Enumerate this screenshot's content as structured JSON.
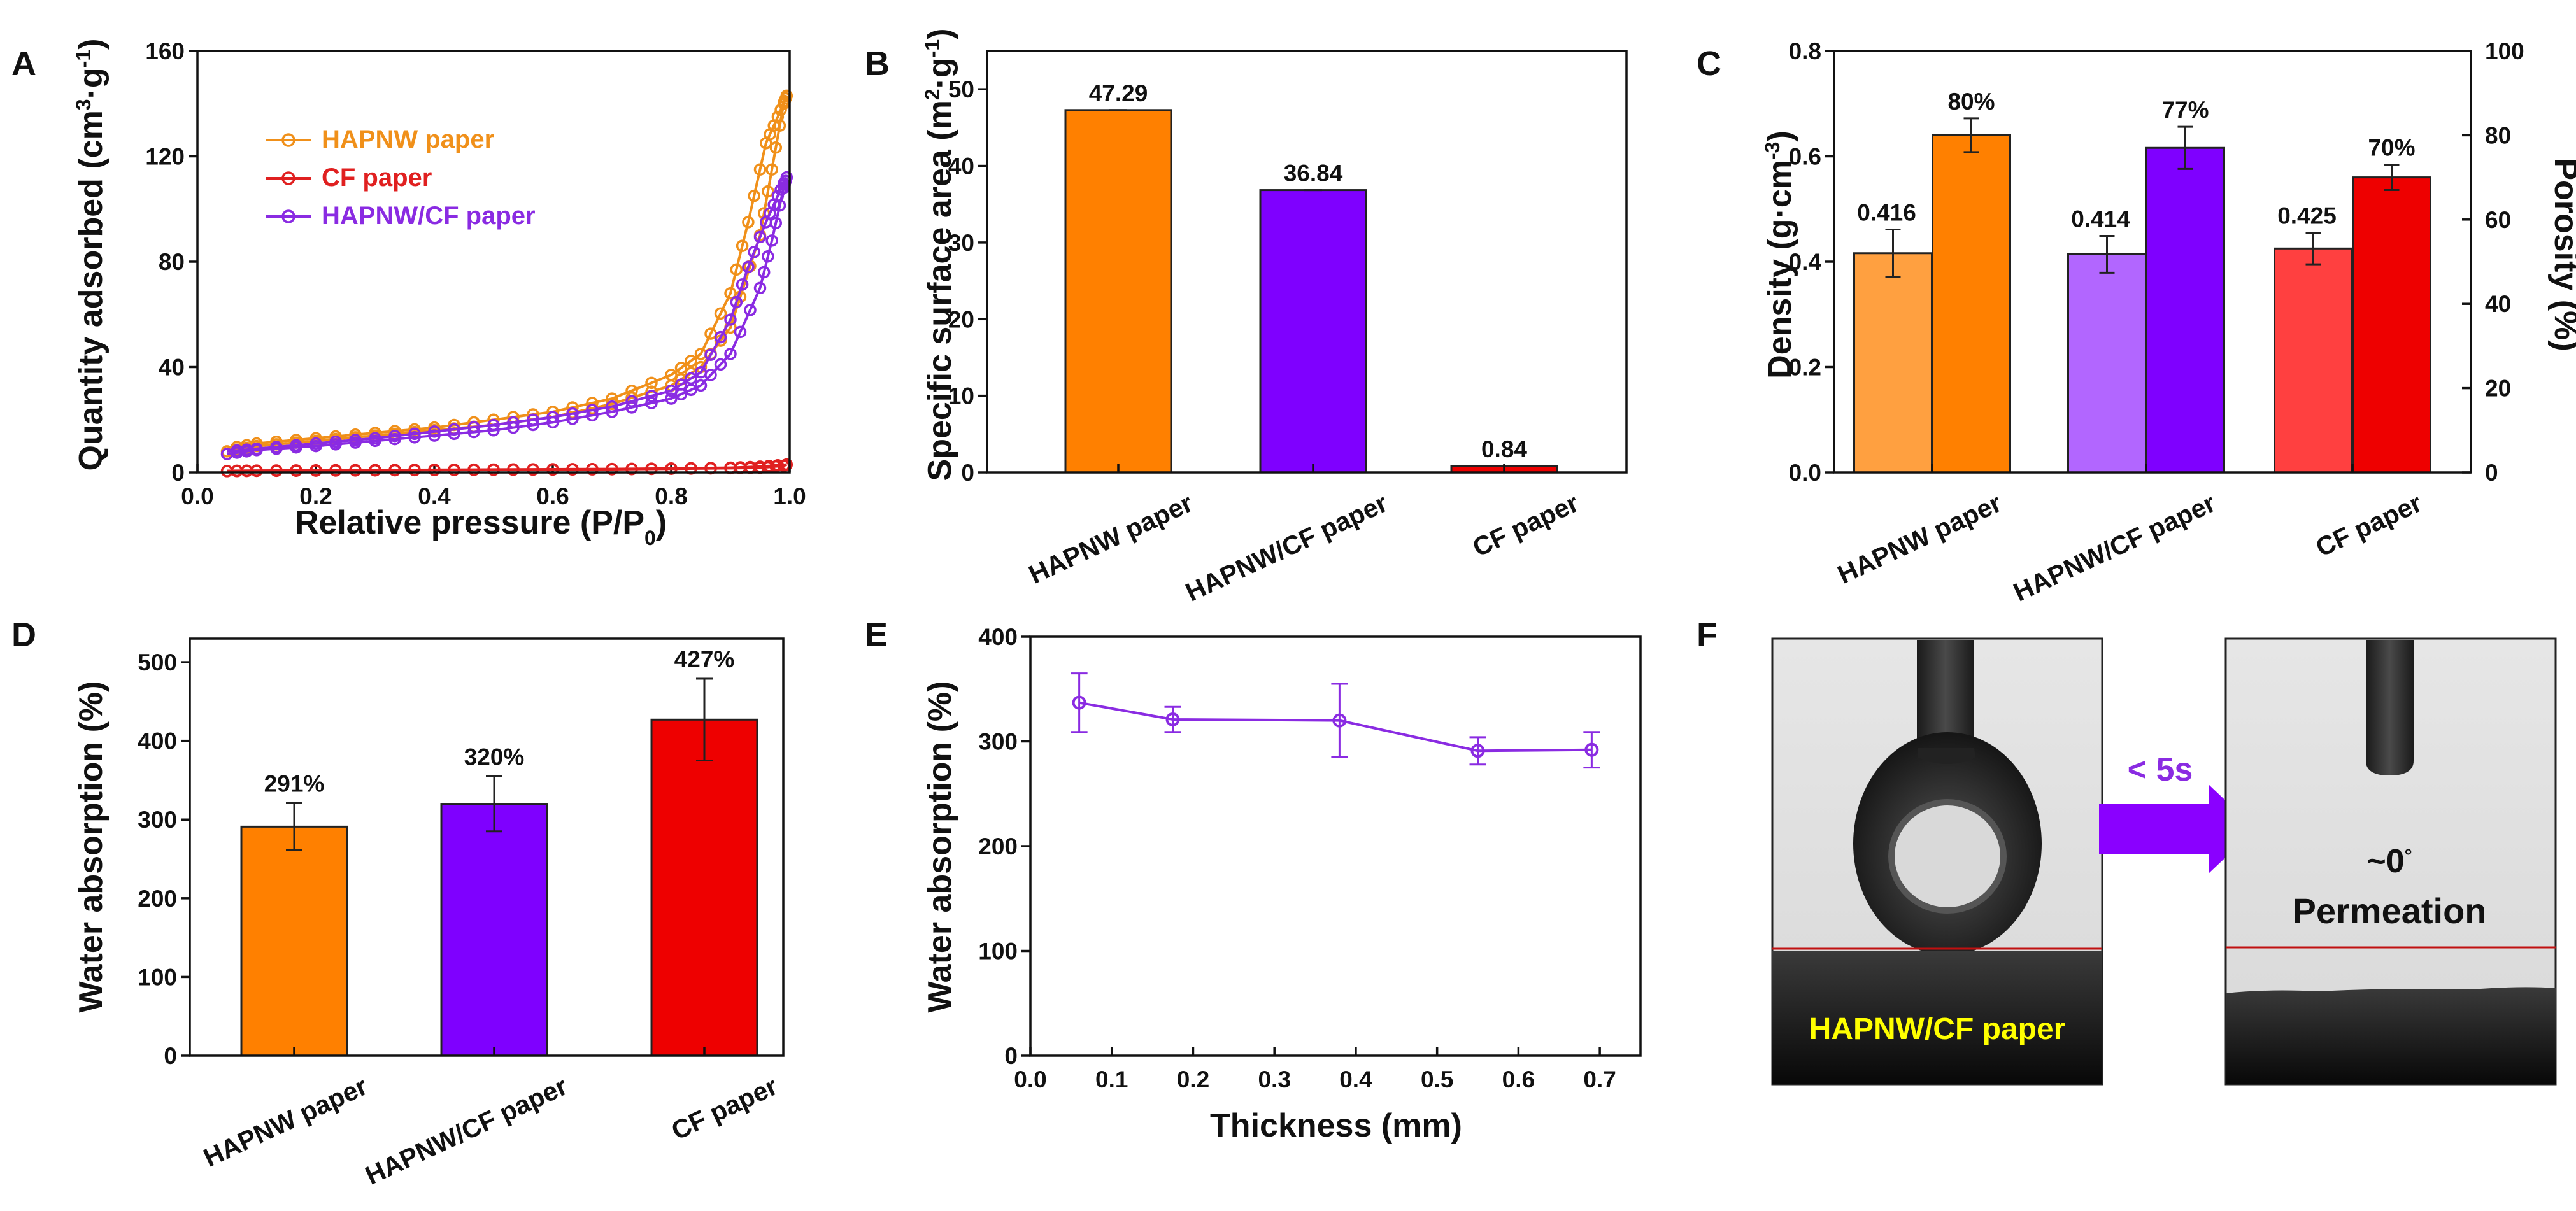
{
  "colors": {
    "orange": "#ff8000",
    "orange_light": "#ffa040",
    "red": "#ee0000",
    "red_light": "#ff4040",
    "purple": "#7f00ff",
    "purple_light": "#b266ff",
    "curve_orange": "#f0901a",
    "curve_red": "#e02020",
    "curve_purple": "#8a2be2",
    "line_e": "#8a2be2",
    "arrow": "#8a00ff",
    "caption_yellow": "#ffff00"
  },
  "chart_data": [
    {
      "panel": "A",
      "type": "line",
      "xlabel": "Relative pressure (P/P",
      "xlabel_sub": "0",
      "xlabel_end": ")",
      "ylabel": "Quantity adsorbed (cm",
      "ylabel_sup": "3",
      "ylabel_mid": "·g",
      "ylabel_sup2": "-1",
      "ylabel_end": ")",
      "xlim": [
        0.0,
        1.0
      ],
      "ylim": [
        0,
        160
      ],
      "xticks": [
        "0.0",
        "0.2",
        "0.4",
        "0.6",
        "0.8",
        "1.0"
      ],
      "yticks": [
        "0",
        "40",
        "80",
        "120",
        "160"
      ],
      "legend": [
        "HAPNW paper",
        "CF paper",
        "HAPNW/CF paper"
      ],
      "series": [
        {
          "name": "HAPNW paper",
          "adsorption": [
            [
              0.05,
              8
            ],
            [
              0.1,
              10
            ],
            [
              0.2,
              12
            ],
            [
              0.3,
              14
            ],
            [
              0.4,
              16
            ],
            [
              0.5,
              18
            ],
            [
              0.6,
              21
            ],
            [
              0.7,
              26
            ],
            [
              0.8,
              33
            ],
            [
              0.85,
              40
            ],
            [
              0.9,
              55
            ],
            [
              0.95,
              90
            ],
            [
              0.97,
              115
            ],
            [
              0.99,
              140
            ],
            [
              0.995,
              143
            ]
          ],
          "desorption": [
            [
              0.995,
              143
            ],
            [
              0.98,
              135
            ],
            [
              0.96,
              125
            ],
            [
              0.93,
              95
            ],
            [
              0.9,
              68
            ],
            [
              0.85,
              45
            ],
            [
              0.8,
              37
            ],
            [
              0.7,
              28
            ],
            [
              0.6,
              23
            ],
            [
              0.5,
              20
            ],
            [
              0.4,
              17
            ],
            [
              0.3,
              15
            ],
            [
              0.2,
              13
            ],
            [
              0.1,
              11
            ],
            [
              0.05,
              9
            ]
          ]
        },
        {
          "name": "CF paper",
          "adsorption": [
            [
              0.05,
              0.5
            ],
            [
              0.1,
              0.6
            ],
            [
              0.2,
              0.7
            ],
            [
              0.3,
              0.8
            ],
            [
              0.4,
              0.9
            ],
            [
              0.5,
              1.0
            ],
            [
              0.6,
              1.1
            ],
            [
              0.7,
              1.2
            ],
            [
              0.8,
              1.4
            ],
            [
              0.9,
              1.6
            ],
            [
              0.95,
              1.8
            ],
            [
              0.99,
              2.5
            ],
            [
              0.995,
              3
            ]
          ],
          "desorption": [
            [
              0.995,
              3
            ],
            [
              0.95,
              2.2
            ],
            [
              0.9,
              1.8
            ],
            [
              0.8,
              1.5
            ],
            [
              0.7,
              1.3
            ],
            [
              0.6,
              1.2
            ],
            [
              0.5,
              1.1
            ],
            [
              0.4,
              1.0
            ],
            [
              0.3,
              0.9
            ],
            [
              0.2,
              0.8
            ],
            [
              0.1,
              0.7
            ],
            [
              0.05,
              0.6
            ]
          ]
        },
        {
          "name": "HAPNW/CF paper",
          "adsorption": [
            [
              0.05,
              7
            ],
            [
              0.1,
              8.5
            ],
            [
              0.2,
              10
            ],
            [
              0.3,
              12
            ],
            [
              0.4,
              14
            ],
            [
              0.5,
              16
            ],
            [
              0.6,
              19
            ],
            [
              0.7,
              23
            ],
            [
              0.8,
              28
            ],
            [
              0.85,
              33
            ],
            [
              0.9,
              45
            ],
            [
              0.95,
              70
            ],
            [
              0.97,
              88
            ],
            [
              0.99,
              108
            ],
            [
              0.995,
              112
            ]
          ],
          "desorption": [
            [
              0.995,
              112
            ],
            [
              0.98,
              105
            ],
            [
              0.96,
              95
            ],
            [
              0.93,
              78
            ],
            [
              0.9,
              58
            ],
            [
              0.85,
              38
            ],
            [
              0.8,
              31
            ],
            [
              0.7,
              25
            ],
            [
              0.6,
              21
            ],
            [
              0.5,
              18
            ],
            [
              0.4,
              15.5
            ],
            [
              0.3,
              13
            ],
            [
              0.2,
              11
            ],
            [
              0.1,
              9
            ],
            [
              0.05,
              8
            ]
          ]
        }
      ]
    },
    {
      "panel": "B",
      "type": "bar",
      "ylabel": "Specific surface area (m",
      "ylabel_sup": "2",
      "ylabel_mid": "·g",
      "ylabel_sup2": "-1",
      "ylabel_end": ")",
      "ylim": [
        0,
        55
      ],
      "yticks": [
        "0",
        "10",
        "20",
        "30",
        "40",
        "50"
      ],
      "categories": [
        "HAPNW paper",
        "HAPNW/CF paper",
        "CF paper"
      ],
      "values": [
        47.29,
        36.84,
        0.84
      ],
      "labels": [
        "47.29",
        "36.84",
        "0.84"
      ]
    },
    {
      "panel": "C",
      "type": "bar",
      "ylabel": "Density (g·cm",
      "ylabel_sup": "-3",
      "ylabel_end": ")",
      "ylabel_right": "Porosity (%)",
      "ylim": [
        0,
        0.8
      ],
      "ylim_right": [
        0,
        100
      ],
      "yticks": [
        "0.0",
        "0.2",
        "0.4",
        "0.6",
        "0.8"
      ],
      "yticks_right": [
        "0",
        "20",
        "40",
        "60",
        "80",
        "100"
      ],
      "categories": [
        "HAPNW paper",
        "HAPNW/CF paper",
        "CF paper"
      ],
      "series": [
        {
          "name": "Density",
          "axis": "left",
          "values": [
            0.416,
            0.414,
            0.425
          ],
          "errors": [
            0.045,
            0.035,
            0.03
          ],
          "labels": [
            "0.416",
            "0.414",
            "0.425"
          ]
        },
        {
          "name": "Porosity",
          "axis": "right",
          "values": [
            80,
            77,
            70
          ],
          "errors": [
            4,
            5,
            3
          ],
          "labels": [
            "80%",
            "77%",
            "70%"
          ]
        }
      ]
    },
    {
      "panel": "D",
      "type": "bar",
      "ylabel": "Water absorption (%)",
      "ylim": [
        0,
        530
      ],
      "yticks": [
        "0",
        "100",
        "200",
        "300",
        "400",
        "500"
      ],
      "categories": [
        "HAPNW paper",
        "HAPNW/CF paper",
        "CF paper"
      ],
      "values": [
        291,
        320,
        427
      ],
      "errors": [
        30,
        35,
        52
      ],
      "labels": [
        "291%",
        "320%",
        "427%"
      ]
    },
    {
      "panel": "E",
      "type": "line",
      "xlabel": "Thickness (mm)",
      "ylabel": "Water absorption (%)",
      "xlim": [
        0.0,
        0.75
      ],
      "ylim": [
        0,
        400
      ],
      "xticks": [
        "0.0",
        "0.1",
        "0.2",
        "0.3",
        "0.4",
        "0.5",
        "0.6",
        "0.7"
      ],
      "yticks": [
        "0",
        "100",
        "200",
        "300",
        "400"
      ],
      "x": [
        0.06,
        0.175,
        0.38,
        0.55,
        0.69
      ],
      "values": [
        337,
        321,
        320,
        291,
        292
      ],
      "errors": [
        28,
        12,
        35,
        13,
        17
      ]
    }
  ],
  "panel_f": {
    "label": "F",
    "caption": "HAPNW/CF paper",
    "arrow_label": "< 5s",
    "angle": "~0",
    "angle_unit": "°",
    "result": "Permeation"
  }
}
